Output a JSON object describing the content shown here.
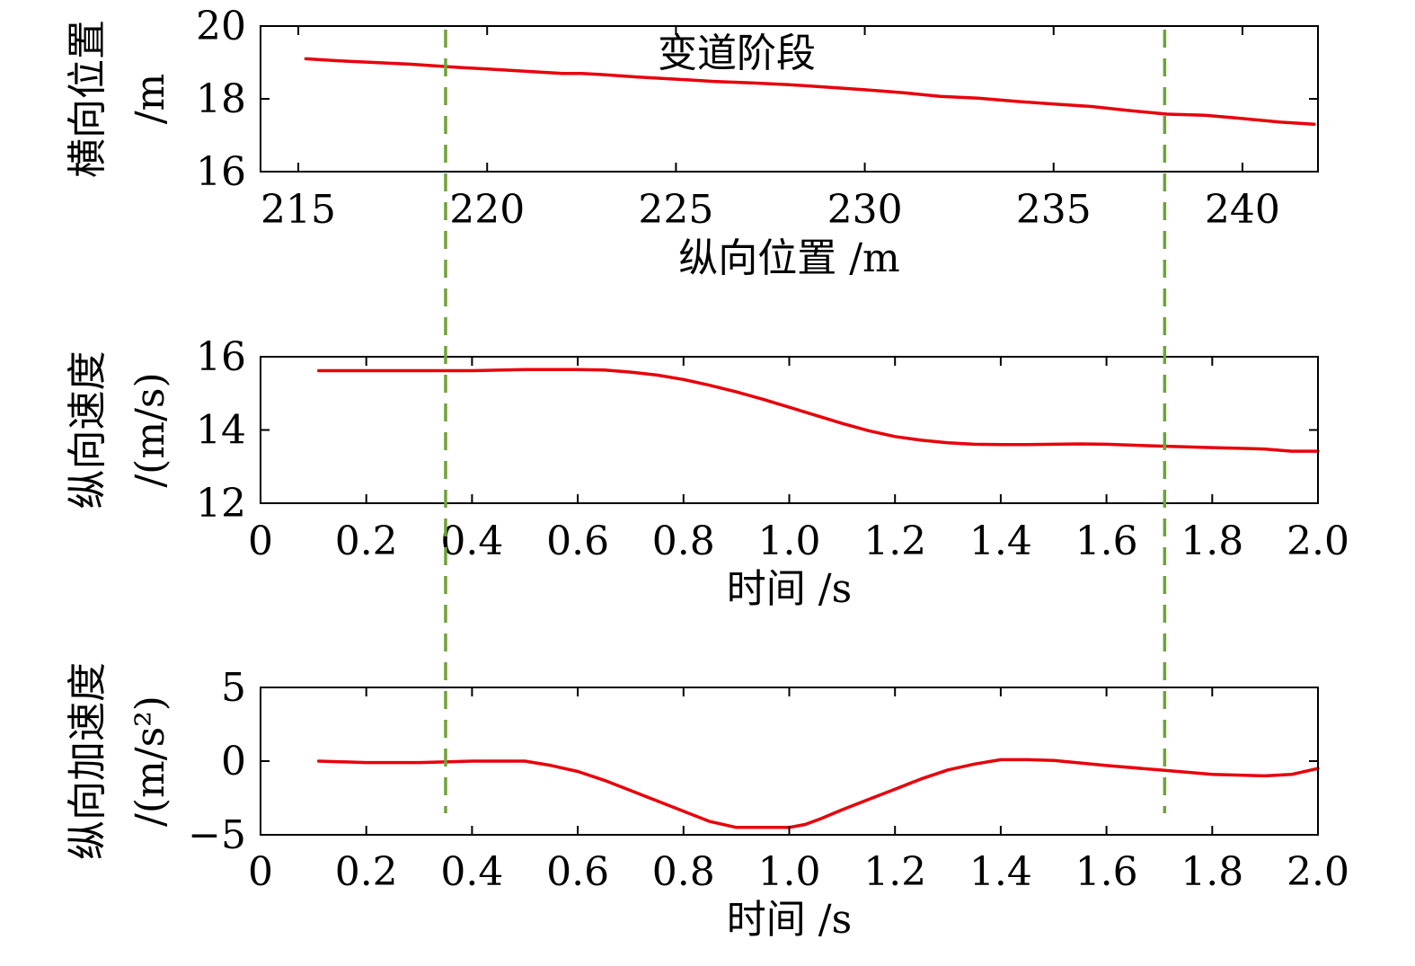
{
  "colors": {
    "series": "#e8000b",
    "phase_boundary": "#6ea33a",
    "axis": "#000000"
  },
  "annotation": "变道阶段",
  "phase_boundaries": {
    "time_s": [
      0.35,
      1.71
    ],
    "longitudinal_position_m": [
      218.8,
      237.8
    ]
  },
  "chart_data": [
    {
      "type": "line",
      "xlabel": "纵向位置 /m",
      "ylabel_line1": "横向位置",
      "ylabel_line2": "/m",
      "xlim": [
        214,
        242
      ],
      "ylim": [
        16,
        20
      ],
      "xticks": [
        215,
        220,
        225,
        230,
        235,
        240
      ],
      "xtick_labels": [
        "215",
        "220",
        "225",
        "230",
        "235",
        "240"
      ],
      "yticks": [
        16,
        18,
        20
      ],
      "ytick_labels": [
        "16",
        "18",
        "20"
      ],
      "series": [
        {
          "x": [
            215.2,
            216,
            217,
            218,
            219,
            220,
            221,
            222,
            222.5,
            223,
            224,
            225,
            226,
            227,
            228,
            229,
            230,
            231,
            232,
            233,
            234,
            235,
            236,
            237,
            238,
            239,
            240,
            241,
            241.9
          ],
          "y": [
            19.1,
            19.05,
            19.0,
            18.95,
            18.88,
            18.82,
            18.76,
            18.7,
            18.7,
            18.67,
            18.6,
            18.54,
            18.48,
            18.44,
            18.39,
            18.32,
            18.25,
            18.17,
            18.07,
            18.02,
            17.93,
            17.86,
            17.79,
            17.68,
            17.58,
            17.55,
            17.46,
            17.36,
            17.3
          ]
        }
      ]
    },
    {
      "type": "line",
      "xlabel": "时间 /s",
      "ylabel_line1": "纵向速度",
      "ylabel_line2": "/(m/s)",
      "xlim": [
        0,
        2.0
      ],
      "ylim": [
        12,
        16
      ],
      "xticks": [
        0,
        0.2,
        0.4,
        0.6,
        0.8,
        1.0,
        1.2,
        1.4,
        1.6,
        1.8,
        2.0
      ],
      "xtick_labels": [
        "0",
        "0.2",
        "0.4",
        "0.6",
        "0.8",
        "1.0",
        "1.2",
        "1.4",
        "1.6",
        "1.8",
        "2.0"
      ],
      "yticks": [
        12,
        14,
        16
      ],
      "ytick_labels": [
        "12",
        "14",
        "16"
      ],
      "series": [
        {
          "x": [
            0.11,
            0.2,
            0.3,
            0.4,
            0.5,
            0.6,
            0.65,
            0.7,
            0.75,
            0.8,
            0.85,
            0.9,
            0.95,
            1.0,
            1.05,
            1.1,
            1.15,
            1.2,
            1.25,
            1.3,
            1.35,
            1.4,
            1.45,
            1.5,
            1.55,
            1.6,
            1.7,
            1.8,
            1.9,
            1.95,
            2.0
          ],
          "y": [
            15.62,
            15.62,
            15.62,
            15.62,
            15.65,
            15.65,
            15.64,
            15.58,
            15.5,
            15.38,
            15.22,
            15.04,
            14.84,
            14.62,
            14.4,
            14.18,
            13.98,
            13.82,
            13.72,
            13.65,
            13.61,
            13.6,
            13.6,
            13.61,
            13.62,
            13.61,
            13.56,
            13.52,
            13.48,
            13.42,
            13.42
          ]
        }
      ]
    },
    {
      "type": "line",
      "xlabel": "时间 /s",
      "ylabel_line1": "纵向加速度",
      "ylabel_line2": "/(m/s²)",
      "xlim": [
        0,
        2.0
      ],
      "ylim": [
        -5,
        5
      ],
      "xticks": [
        0,
        0.2,
        0.4,
        0.6,
        0.8,
        1.0,
        1.2,
        1.4,
        1.6,
        1.8,
        2.0
      ],
      "xtick_labels": [
        "0",
        "0.2",
        "0.4",
        "0.6",
        "0.8",
        "1.0",
        "1.2",
        "1.4",
        "1.6",
        "1.8",
        "2.0"
      ],
      "yticks": [
        -5,
        0,
        5
      ],
      "ytick_labels": [
        "−5",
        "0",
        "5"
      ],
      "series": [
        {
          "x": [
            0.11,
            0.2,
            0.3,
            0.4,
            0.5,
            0.55,
            0.6,
            0.65,
            0.7,
            0.75,
            0.8,
            0.85,
            0.9,
            0.95,
            1.0,
            1.03,
            1.06,
            1.1,
            1.15,
            1.2,
            1.25,
            1.3,
            1.35,
            1.4,
            1.45,
            1.5,
            1.6,
            1.7,
            1.8,
            1.9,
            1.95,
            2.0
          ],
          "y": [
            0,
            -0.1,
            -0.1,
            0,
            0,
            -0.3,
            -0.7,
            -1.3,
            -2.0,
            -2.7,
            -3.4,
            -4.1,
            -4.5,
            -4.5,
            -4.5,
            -4.3,
            -3.9,
            -3.3,
            -2.6,
            -1.9,
            -1.2,
            -0.6,
            -0.2,
            0.1,
            0.1,
            0.05,
            -0.3,
            -0.6,
            -0.9,
            -1.0,
            -0.9,
            -0.5
          ]
        }
      ]
    }
  ]
}
